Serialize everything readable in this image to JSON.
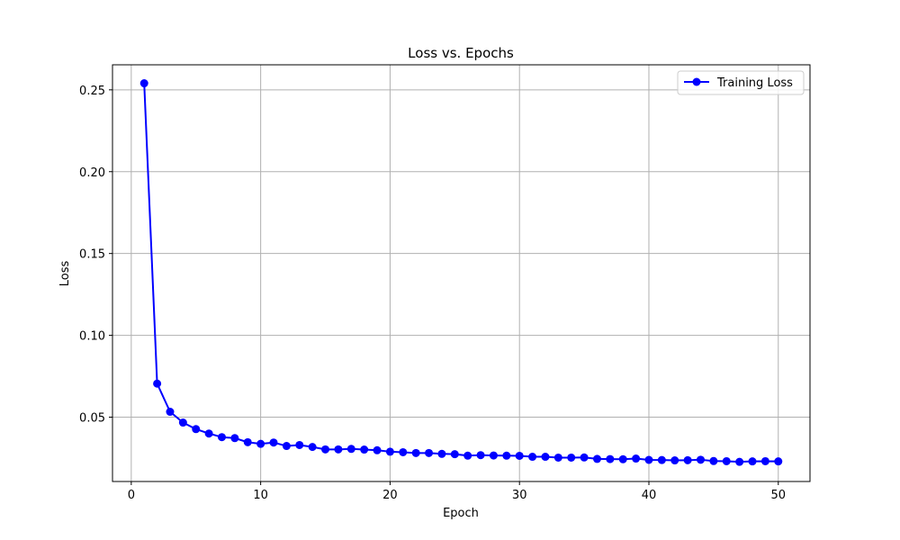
{
  "chart_data": {
    "type": "line",
    "title": "Loss vs. Epochs",
    "xlabel": "Epoch",
    "ylabel": "Loss",
    "xlim": [
      -1.45,
      52.45
    ],
    "ylim": [
      0.0107,
      0.2653
    ],
    "xticks": [
      0,
      10,
      20,
      30,
      40,
      50
    ],
    "yticks": [
      0.05,
      0.1,
      0.15,
      0.2,
      0.25
    ],
    "xtick_labels": [
      "0",
      "10",
      "20",
      "30",
      "40",
      "50"
    ],
    "ytick_labels": [
      "0.05",
      "0.10",
      "0.15",
      "0.20",
      "0.25"
    ],
    "grid": true,
    "legend_position": "top-right",
    "series": [
      {
        "name": "Training Loss",
        "color": "#0000ff",
        "marker": "circle",
        "x": [
          1,
          2,
          3,
          4,
          5,
          6,
          7,
          8,
          9,
          10,
          11,
          12,
          13,
          14,
          15,
          16,
          17,
          18,
          19,
          20,
          21,
          22,
          23,
          24,
          25,
          26,
          27,
          28,
          29,
          30,
          31,
          32,
          33,
          34,
          35,
          36,
          37,
          38,
          39,
          40,
          41,
          42,
          43,
          44,
          45,
          46,
          47,
          48,
          49,
          50
        ],
        "y": [
          0.254,
          0.0705,
          0.0533,
          0.0467,
          0.0427,
          0.04,
          0.0378,
          0.0372,
          0.0347,
          0.0337,
          0.0345,
          0.0324,
          0.033,
          0.0318,
          0.0303,
          0.0303,
          0.0306,
          0.0302,
          0.0298,
          0.0289,
          0.0286,
          0.0281,
          0.0281,
          0.0276,
          0.0274,
          0.0265,
          0.0268,
          0.0266,
          0.0265,
          0.0264,
          0.0258,
          0.0258,
          0.0253,
          0.0253,
          0.0254,
          0.0245,
          0.0244,
          0.0243,
          0.0247,
          0.0239,
          0.0238,
          0.0236,
          0.0237,
          0.024,
          0.0232,
          0.0231,
          0.0227,
          0.023,
          0.0231,
          0.023
        ]
      }
    ]
  }
}
